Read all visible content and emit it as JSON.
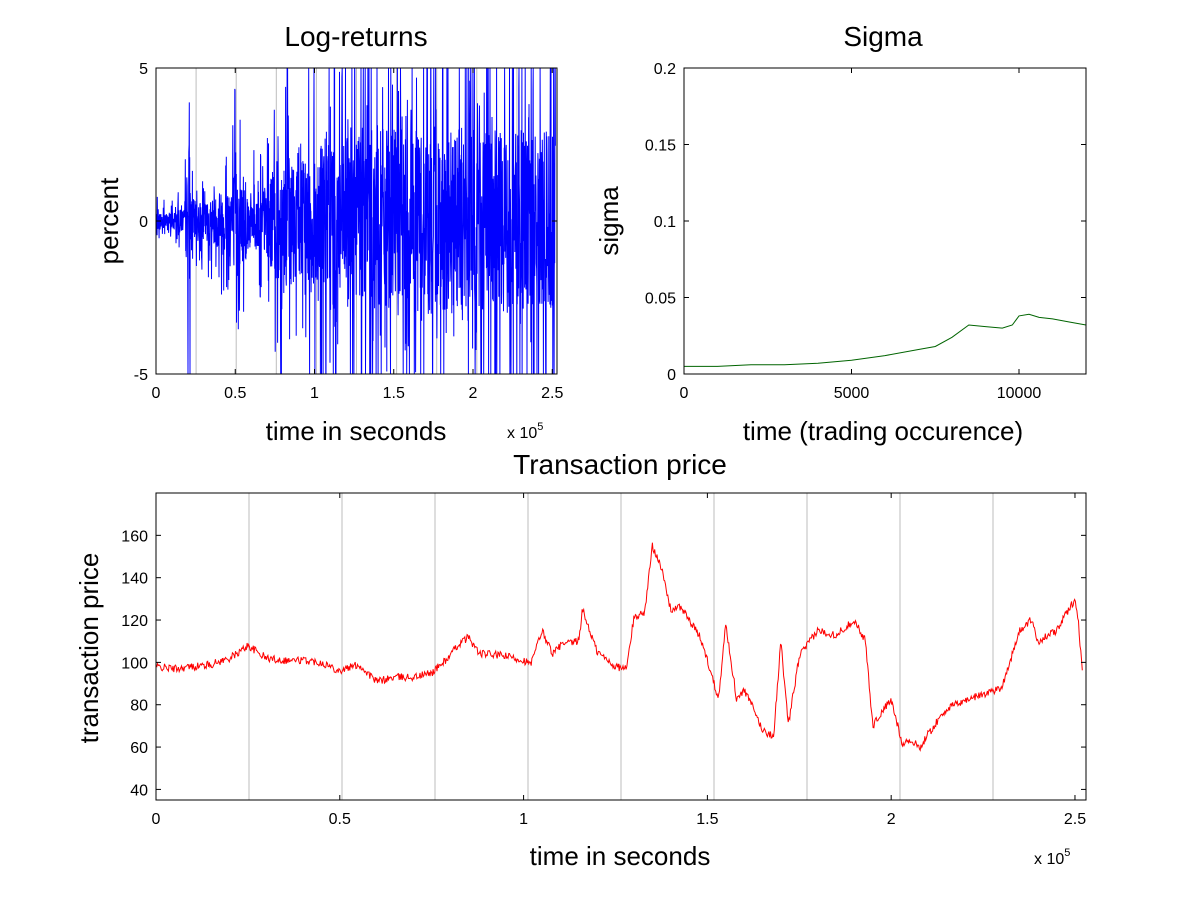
{
  "chart_data": [
    {
      "id": "logret",
      "type": "line",
      "title": "Log-returns",
      "xlabel": "time in seconds",
      "ylabel": "percent",
      "x_multiplier": "x 10",
      "x_multiplier_exp": "5",
      "xlim": [
        0,
        2.53
      ],
      "ylim": [
        -5,
        5
      ],
      "xticks": [
        0,
        0.5,
        1,
        1.5,
        2,
        2.5
      ],
      "yticks": [
        -5,
        0,
        5
      ],
      "vlines": [
        0.253,
        0.506,
        0.759,
        1.012,
        1.265,
        1.518,
        1.771,
        2.024,
        2.277
      ],
      "series": [
        {
          "color": "#0000ff",
          "x": [
            0,
            0.1,
            0.18,
            0.21,
            0.22,
            0.25,
            0.3,
            0.4,
            0.5,
            0.6,
            0.7,
            0.8,
            0.9,
            1.0,
            1.1,
            1.2,
            1.3,
            1.4,
            1.5,
            1.6,
            1.7,
            1.8,
            1.9,
            2.0,
            2.1,
            2.2,
            2.3,
            2.4,
            2.5,
            2.52
          ],
          "amplitude": [
            0.5,
            0.5,
            0.7,
            5,
            1.5,
            1.0,
            1.0,
            1.5,
            3.0,
            1.5,
            2.0,
            4.0,
            3.0,
            4.5,
            5,
            4.5,
            5,
            5,
            5,
            5,
            5,
            5,
            5,
            5,
            5,
            5,
            5,
            5,
            5,
            5
          ]
        }
      ]
    },
    {
      "id": "sigma",
      "type": "line",
      "title": "Sigma",
      "xlabel": "time (trading occurence)",
      "ylabel": "sigma",
      "xlim": [
        0,
        12000
      ],
      "ylim": [
        0,
        0.2
      ],
      "xticks": [
        0,
        5000,
        10000
      ],
      "yticks": [
        0,
        0.05,
        0.1,
        0.15,
        0.2
      ],
      "series": [
        {
          "color": "#006400",
          "x": [
            0,
            1000,
            2000,
            3000,
            4000,
            5000,
            6000,
            7000,
            7500,
            8000,
            8500,
            9000,
            9500,
            9800,
            10000,
            10300,
            10600,
            11000,
            11500,
            12000
          ],
          "y": [
            0.005,
            0.005,
            0.006,
            0.006,
            0.007,
            0.009,
            0.012,
            0.016,
            0.018,
            0.024,
            0.032,
            0.031,
            0.03,
            0.032,
            0.038,
            0.039,
            0.037,
            0.036,
            0.034,
            0.032
          ]
        }
      ]
    },
    {
      "id": "price",
      "type": "line",
      "title": "Transaction price",
      "xlabel": "time in seconds",
      "ylabel": "transaction price",
      "x_multiplier": "x 10",
      "x_multiplier_exp": "5",
      "xlim": [
        0,
        2.53
      ],
      "ylim": [
        35,
        180
      ],
      "xticks": [
        0,
        0.5,
        1,
        1.5,
        2,
        2.5
      ],
      "yticks": [
        40,
        60,
        80,
        100,
        120,
        140,
        160
      ],
      "vlines": [
        0.253,
        0.506,
        0.759,
        1.012,
        1.265,
        1.518,
        1.771,
        2.024,
        2.277
      ],
      "series": [
        {
          "color": "#ff0000",
          "x": [
            0,
            0.05,
            0.1,
            0.15,
            0.2,
            0.22,
            0.25,
            0.3,
            0.35,
            0.4,
            0.45,
            0.5,
            0.55,
            0.6,
            0.65,
            0.7,
            0.75,
            0.8,
            0.82,
            0.85,
            0.88,
            0.9,
            0.95,
            1.0,
            1.02,
            1.05,
            1.08,
            1.1,
            1.15,
            1.16,
            1.2,
            1.25,
            1.28,
            1.3,
            1.33,
            1.35,
            1.37,
            1.4,
            1.43,
            1.45,
            1.48,
            1.5,
            1.53,
            1.55,
            1.58,
            1.6,
            1.62,
            1.65,
            1.68,
            1.7,
            1.72,
            1.75,
            1.8,
            1.85,
            1.9,
            1.93,
            1.95,
            1.98,
            2.0,
            2.03,
            2.05,
            2.08,
            2.1,
            2.15,
            2.2,
            2.25,
            2.3,
            2.35,
            2.38,
            2.4,
            2.45,
            2.5,
            2.51,
            2.52
          ],
          "y": [
            98,
            97,
            98,
            99,
            102,
            104,
            108,
            102,
            101,
            101,
            100,
            96,
            99,
            91,
            93,
            93,
            95,
            103,
            108,
            112,
            104,
            104,
            103,
            101,
            99,
            115,
            104,
            108,
            110,
            125,
            105,
            98,
            97,
            121,
            124,
            155,
            148,
            125,
            126,
            120,
            112,
            101,
            83,
            118,
            82,
            87,
            80,
            68,
            65,
            110,
            70,
            103,
            115,
            113,
            120,
            110,
            70,
            78,
            82,
            62,
            63,
            60,
            66,
            78,
            82,
            85,
            88,
            115,
            120,
            110,
            115,
            130,
            118,
            95
          ]
        }
      ]
    }
  ]
}
